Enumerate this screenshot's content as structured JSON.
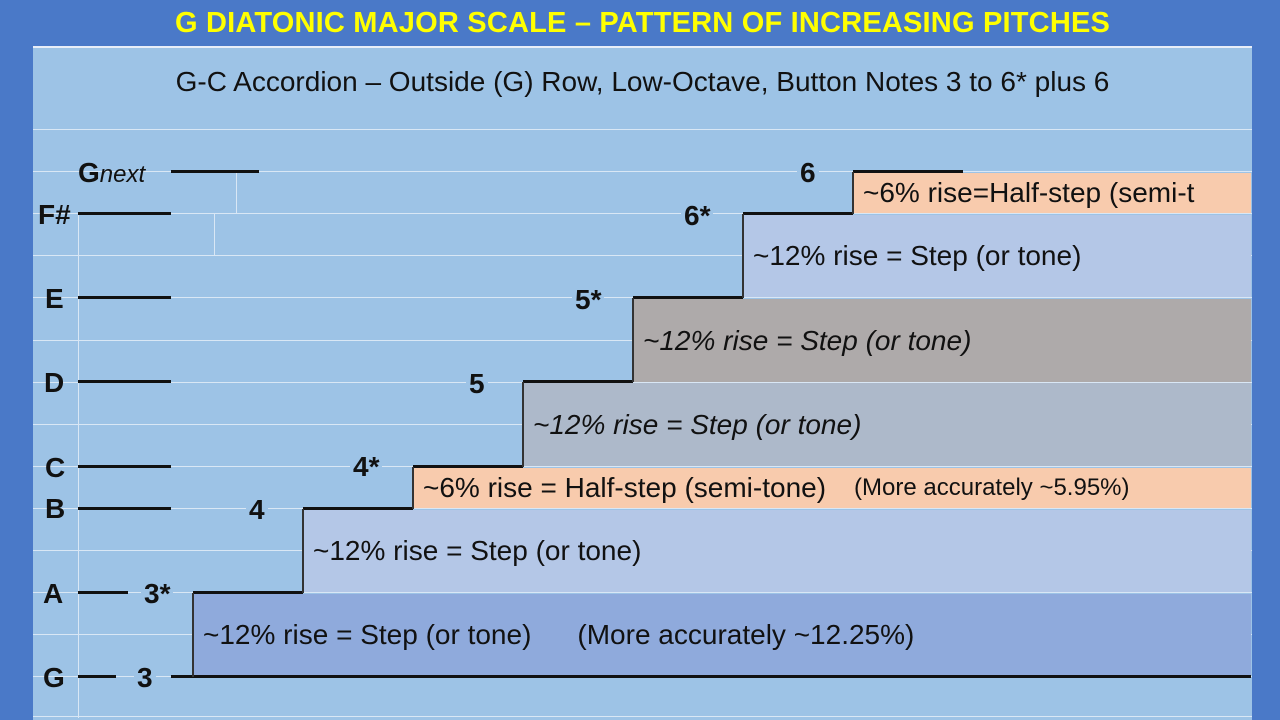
{
  "title": "G DIATONIC MAJOR SCALE – PATTERN OF INCREASING PITCHES",
  "subtitle": "G-C Accordion – Outside (G) Row, Low-Octave, Button Notes 3 to 6* plus 6",
  "notes": {
    "g": "G",
    "a": "A",
    "b": "B",
    "c": "C",
    "d": "D",
    "e": "E",
    "fsharp": "F#",
    "gnext_main": "G",
    "gnext_sub": "next"
  },
  "buttons": {
    "b3": "3",
    "b3s": "3*",
    "b4": "4",
    "b4s": "4*",
    "b5": "5",
    "b5s": "5*",
    "b6s": "6*",
    "b6": "6"
  },
  "intervals": {
    "g_a": {
      "text": "~12% rise = Step  (or tone)",
      "extra": "(More accurately ~12.25%)"
    },
    "a_b": {
      "text": "~12% rise = Step  (or tone)"
    },
    "b_c": {
      "text": "~6% rise = Half-step (semi-tone)",
      "extra": "(More accurately ~5.95%)"
    },
    "c_d": {
      "text": "~12% rise = Step  (or tone)"
    },
    "d_e": {
      "text": "~12% rise = Step  (or tone)"
    },
    "e_fsharp": {
      "text": "~12% rise = Step  (or tone)"
    },
    "fsharp_gnext": {
      "text": "~6% rise=Half-step (semi-t"
    }
  },
  "colors": {
    "title_text": "#ffff00",
    "title_bg": "#4a79c8",
    "panel_bg": "#9dc3e6",
    "step_band": "#b4c7e7",
    "step_band_dark": "#8faadc",
    "half_step_band": "#f8cbad",
    "grey_band": "#adb9ca",
    "dark_grey_band": "#aeaaaa"
  }
}
